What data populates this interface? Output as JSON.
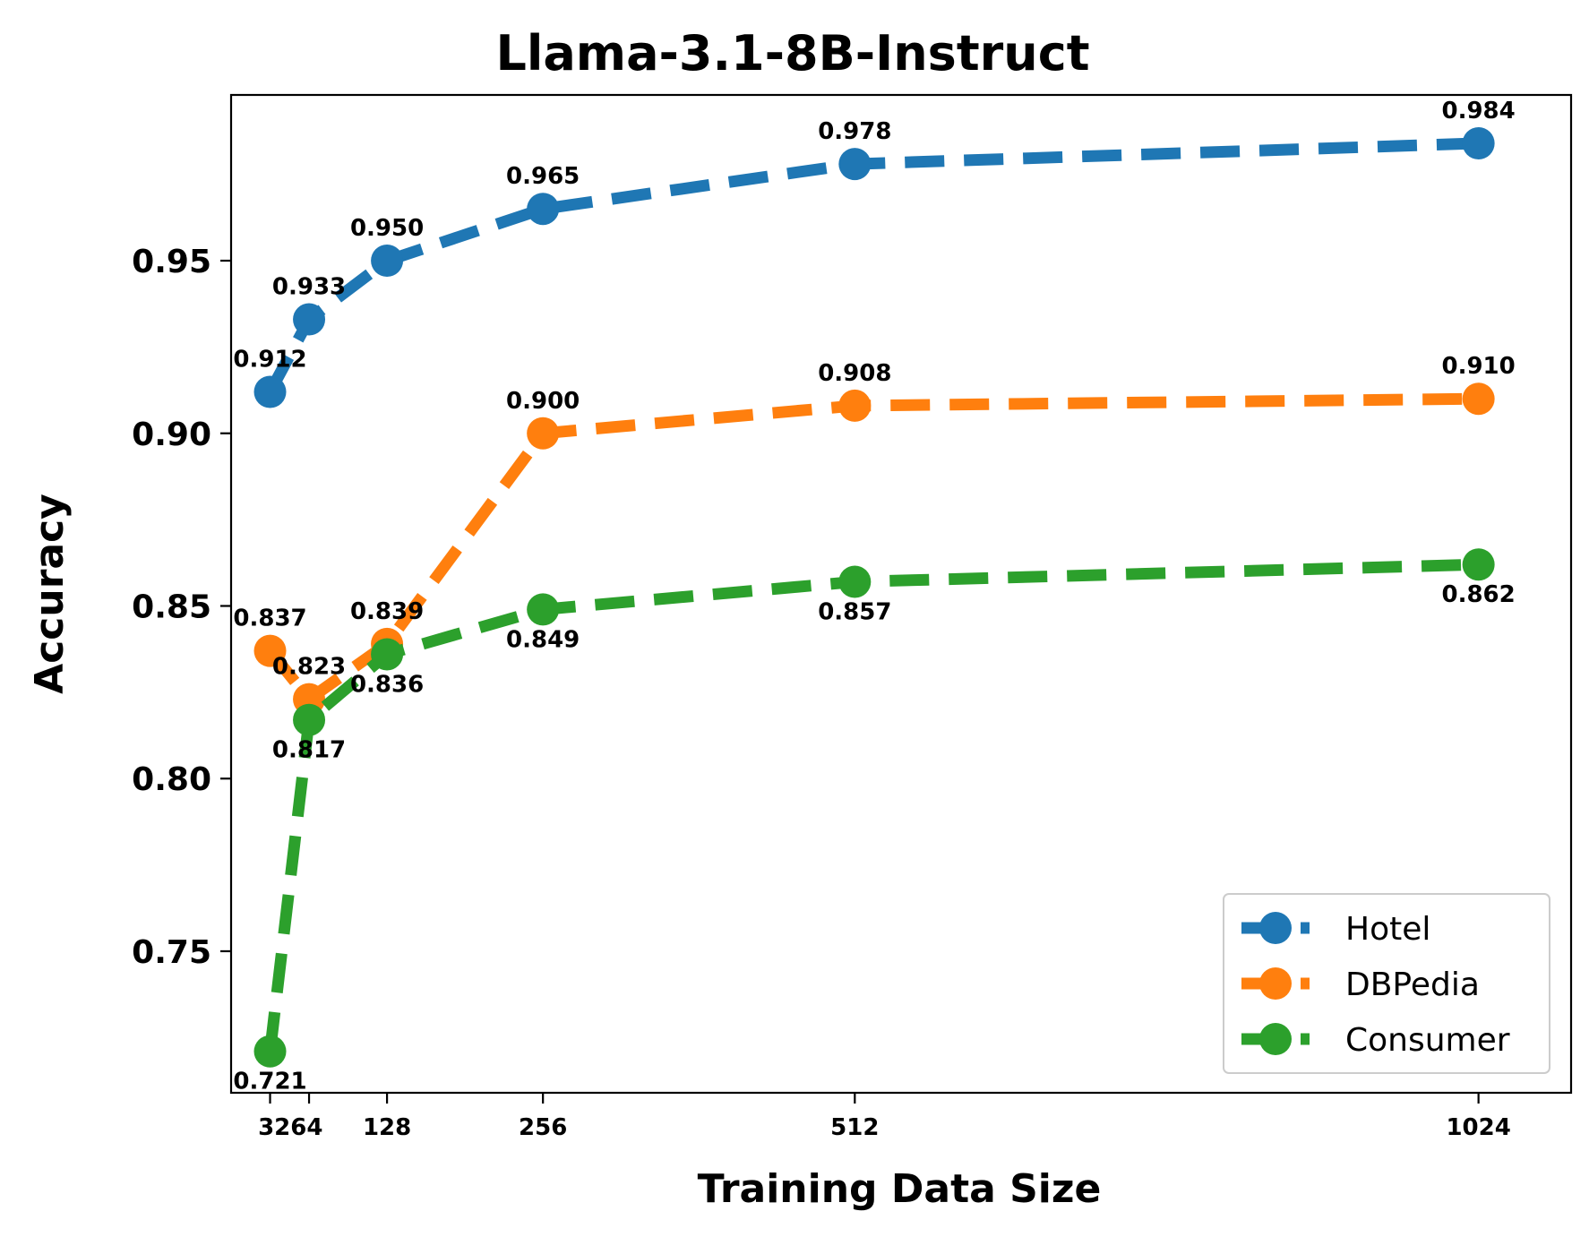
{
  "chart_data": {
    "type": "line",
    "title": "Llama-3.1-8B-Instruct",
    "xlabel": "Training Data Size",
    "ylabel": "Accuracy",
    "x": [
      32,
      64,
      128,
      256,
      512,
      1024
    ],
    "xtick_labels": [
      "32",
      "64",
      "128",
      "256",
      "512",
      "1024"
    ],
    "ylim": [
      0.709,
      0.998
    ],
    "yticks": [
      0.75,
      0.8,
      0.85,
      0.9,
      0.95
    ],
    "ytick_labels": [
      "0.75",
      "0.80",
      "0.85",
      "0.90",
      "0.95"
    ],
    "grid": false,
    "legend_position": "lower right",
    "series": [
      {
        "name": "Hotel",
        "color": "#1f77b4",
        "values": [
          0.912,
          0.933,
          0.95,
          0.965,
          0.978,
          0.984
        ],
        "labels": [
          "0.912",
          "0.933",
          "0.950",
          "0.965",
          "0.978",
          "0.984"
        ],
        "label_position": "above"
      },
      {
        "name": "DBPedia",
        "color": "#ff7f0e",
        "values": [
          0.837,
          0.823,
          0.839,
          0.9,
          0.908,
          0.91
        ],
        "labels": [
          "0.837",
          "0.823",
          "0.839",
          "0.900",
          "0.908",
          "0.910"
        ],
        "label_position": "above"
      },
      {
        "name": "Consumer",
        "color": "#2ca02c",
        "values": [
          0.721,
          0.817,
          0.836,
          0.849,
          0.857,
          0.862
        ],
        "labels": [
          "0.721",
          "0.817",
          "0.836",
          "0.849",
          "0.857",
          "0.862"
        ],
        "label_position": "below"
      }
    ]
  }
}
